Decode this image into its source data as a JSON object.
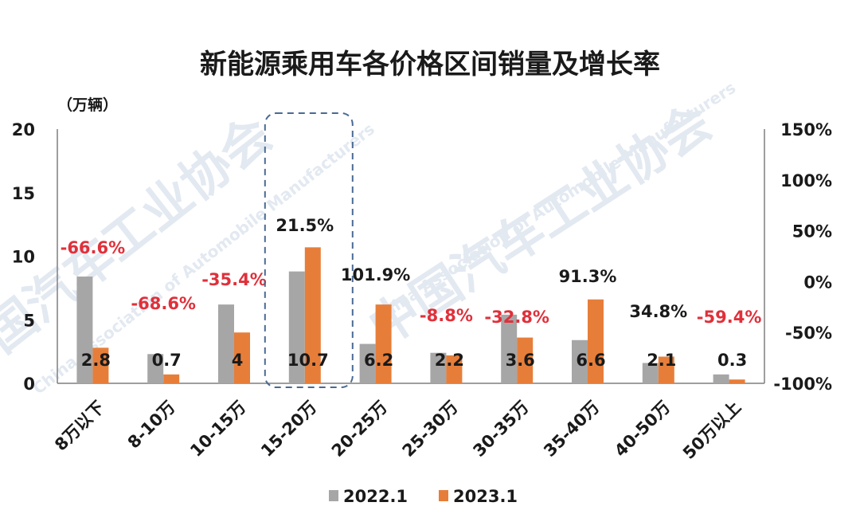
{
  "chart_data": {
    "type": "bar",
    "title": "新能源乘用车各价格区间销量及增长率",
    "ylabel": "（万辆）",
    "ylim": [
      0,
      20
    ],
    "y_ticks": [
      "0",
      "5",
      "10",
      "15",
      "20"
    ],
    "y2lim": [
      -100,
      150
    ],
    "y2_ticks": [
      "-100%",
      "-50%",
      "0%",
      "50%",
      "100%",
      "150%"
    ],
    "categories": [
      "8万以下",
      "8-10万",
      "10-15万",
      "15-20万",
      "20-25万",
      "25-30万",
      "30-35万",
      "35-40万",
      "40-50万",
      "50万以上"
    ],
    "series": [
      {
        "name": "2022.1",
        "color": "#a6a6a6",
        "values": [
          8.4,
          2.3,
          6.2,
          8.8,
          3.1,
          2.4,
          5.4,
          3.4,
          1.6,
          0.7
        ]
      },
      {
        "name": "2023.1",
        "color": "#e67e3a",
        "values": [
          2.8,
          0.7,
          4,
          10.7,
          6.2,
          2.2,
          3.6,
          6.6,
          2.1,
          0.3
        ]
      }
    ],
    "data_labels": [
      "2.8",
      "0.7",
      "4",
      "10.7",
      "6.2",
      "2.2",
      "3.6",
      "6.6",
      "2.1",
      "0.3"
    ],
    "growth_rates": [
      "-66.6%",
      "-68.6%",
      "-35.4%",
      "21.5%",
      "101.9%",
      "-8.8%",
      "-32.8%",
      "91.3%",
      "34.8%",
      "-59.4%"
    ],
    "negative_color": "#e0303a",
    "positive_color": "#1a1a1a",
    "highlight_category": "15-20万",
    "highlight_color": "#4a6a94",
    "legend_position": "bottom",
    "grid": false
  },
  "watermark": {
    "cn": "中国汽车工业协会",
    "en": "China Association of Automobile Manufacturers"
  }
}
